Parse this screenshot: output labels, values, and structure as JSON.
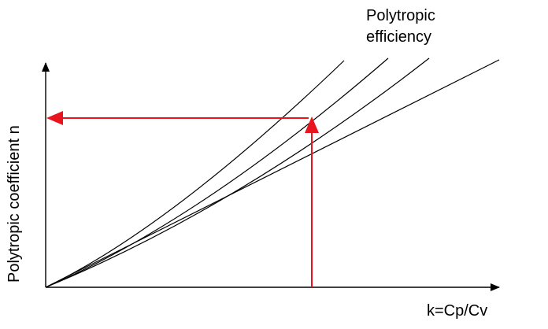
{
  "diagram": {
    "curve_label_line1": "Polytropic",
    "curve_label_line2": "efficiency",
    "x_axis_label": "k=Cp/Cv",
    "y_axis_label": "Polytropic coefficient n"
  },
  "chart_data": {
    "type": "line",
    "xlabel": "k=Cp/Cv",
    "ylabel": "Polytropic coefficient n",
    "annotation": "Polytropic efficiency",
    "curve_count": 4,
    "colors": {
      "curves": "#000000",
      "axes": "#000000",
      "reading_arrows": "#e8141e"
    }
  }
}
